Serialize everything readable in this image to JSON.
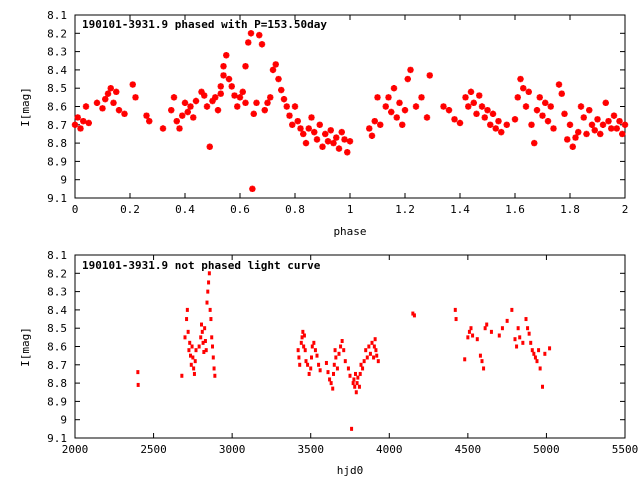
{
  "colors": {
    "points": "#ff0000",
    "axes": "#000000"
  },
  "chart_data": [
    {
      "type": "scatter",
      "title": "190101-3931.9 phased with P=153.50day",
      "xlabel": "phase",
      "ylabel": "I[mag]",
      "xlim": [
        0,
        2
      ],
      "ylim": [
        9.1,
        8.1
      ],
      "y_inverted": true,
      "grid": false,
      "legend": "none",
      "marker": "star",
      "xticks": [
        "0",
        "0.2",
        "0.4",
        "0.6",
        "0.8",
        "1",
        "1.2",
        "1.4",
        "1.6",
        "1.8",
        "2"
      ],
      "yticks": [
        "8.1",
        "8.2",
        "8.3",
        "8.4",
        "8.5",
        "8.6",
        "8.7",
        "8.8",
        "8.9",
        "9",
        "9.1"
      ],
      "points": [
        [
          0.0,
          8.7
        ],
        [
          0.01,
          8.66
        ],
        [
          0.02,
          8.72
        ],
        [
          0.03,
          8.68
        ],
        [
          0.04,
          8.6
        ],
        [
          0.05,
          8.69
        ],
        [
          0.08,
          8.58
        ],
        [
          0.1,
          8.61
        ],
        [
          0.11,
          8.56
        ],
        [
          0.12,
          8.53
        ],
        [
          0.13,
          8.5
        ],
        [
          0.14,
          8.58
        ],
        [
          0.15,
          8.52
        ],
        [
          0.16,
          8.62
        ],
        [
          0.18,
          8.64
        ],
        [
          0.21,
          8.48
        ],
        [
          0.22,
          8.55
        ],
        [
          0.26,
          8.65
        ],
        [
          0.27,
          8.68
        ],
        [
          0.32,
          8.72
        ],
        [
          0.35,
          8.62
        ],
        [
          0.36,
          8.55
        ],
        [
          0.37,
          8.68
        ],
        [
          0.38,
          8.72
        ],
        [
          0.39,
          8.65
        ],
        [
          0.4,
          8.58
        ],
        [
          0.41,
          8.63
        ],
        [
          0.42,
          8.6
        ],
        [
          0.43,
          8.66
        ],
        [
          0.44,
          8.57
        ],
        [
          0.46,
          8.52
        ],
        [
          0.47,
          8.54
        ],
        [
          0.48,
          8.6
        ],
        [
          0.49,
          8.82
        ],
        [
          0.5,
          8.57
        ],
        [
          0.51,
          8.55
        ],
        [
          0.52,
          8.62
        ],
        [
          0.53,
          8.53
        ],
        [
          0.53,
          8.49
        ],
        [
          0.54,
          8.43
        ],
        [
          0.54,
          8.38
        ],
        [
          0.55,
          8.32
        ],
        [
          0.56,
          8.45
        ],
        [
          0.57,
          8.49
        ],
        [
          0.58,
          8.54
        ],
        [
          0.59,
          8.6
        ],
        [
          0.6,
          8.55
        ],
        [
          0.61,
          8.52
        ],
        [
          0.62,
          8.58
        ],
        [
          0.62,
          8.38
        ],
        [
          0.63,
          8.25
        ],
        [
          0.64,
          8.2
        ],
        [
          0.645,
          9.05
        ],
        [
          0.65,
          8.64
        ],
        [
          0.66,
          8.58
        ],
        [
          0.67,
          8.21
        ],
        [
          0.68,
          8.26
        ],
        [
          0.69,
          8.62
        ],
        [
          0.7,
          8.58
        ],
        [
          0.71,
          8.55
        ],
        [
          0.72,
          8.4
        ],
        [
          0.73,
          8.37
        ],
        [
          0.74,
          8.45
        ],
        [
          0.75,
          8.51
        ],
        [
          0.76,
          8.56
        ],
        [
          0.77,
          8.6
        ],
        [
          0.78,
          8.65
        ],
        [
          0.79,
          8.7
        ],
        [
          0.8,
          8.6
        ],
        [
          0.81,
          8.68
        ],
        [
          0.82,
          8.72
        ],
        [
          0.83,
          8.75
        ],
        [
          0.84,
          8.8
        ],
        [
          0.85,
          8.72
        ],
        [
          0.86,
          8.66
        ],
        [
          0.87,
          8.74
        ],
        [
          0.88,
          8.78
        ],
        [
          0.89,
          8.7
        ],
        [
          0.9,
          8.82
        ],
        [
          0.91,
          8.75
        ],
        [
          0.92,
          8.79
        ],
        [
          0.93,
          8.73
        ],
        [
          0.94,
          8.8
        ],
        [
          0.95,
          8.77
        ],
        [
          0.96,
          8.83
        ],
        [
          0.97,
          8.74
        ],
        [
          0.98,
          8.78
        ],
        [
          0.99,
          8.85
        ],
        [
          1.0,
          8.79
        ],
        [
          1.07,
          8.72
        ],
        [
          1.08,
          8.76
        ],
        [
          1.09,
          8.68
        ],
        [
          1.1,
          8.55
        ],
        [
          1.11,
          8.7
        ],
        [
          1.13,
          8.6
        ],
        [
          1.14,
          8.55
        ],
        [
          1.15,
          8.63
        ],
        [
          1.16,
          8.5
        ],
        [
          1.17,
          8.66
        ],
        [
          1.18,
          8.58
        ],
        [
          1.19,
          8.7
        ],
        [
          1.2,
          8.62
        ],
        [
          1.21,
          8.45
        ],
        [
          1.22,
          8.4
        ],
        [
          1.24,
          8.6
        ],
        [
          1.26,
          8.55
        ],
        [
          1.28,
          8.66
        ],
        [
          1.29,
          8.43
        ],
        [
          1.34,
          8.6
        ],
        [
          1.36,
          8.62
        ],
        [
          1.38,
          8.67
        ],
        [
          1.4,
          8.69
        ],
        [
          1.42,
          8.55
        ],
        [
          1.43,
          8.6
        ],
        [
          1.44,
          8.52
        ],
        [
          1.45,
          8.58
        ],
        [
          1.46,
          8.64
        ],
        [
          1.47,
          8.54
        ],
        [
          1.48,
          8.6
        ],
        [
          1.49,
          8.66
        ],
        [
          1.5,
          8.62
        ],
        [
          1.51,
          8.7
        ],
        [
          1.52,
          8.64
        ],
        [
          1.53,
          8.72
        ],
        [
          1.54,
          8.68
        ],
        [
          1.55,
          8.74
        ],
        [
          1.57,
          8.7
        ],
        [
          1.6,
          8.67
        ],
        [
          1.61,
          8.55
        ],
        [
          1.62,
          8.45
        ],
        [
          1.63,
          8.5
        ],
        [
          1.64,
          8.6
        ],
        [
          1.65,
          8.52
        ],
        [
          1.66,
          8.7
        ],
        [
          1.67,
          8.8
        ],
        [
          1.68,
          8.62
        ],
        [
          1.69,
          8.55
        ],
        [
          1.7,
          8.65
        ],
        [
          1.71,
          8.58
        ],
        [
          1.72,
          8.68
        ],
        [
          1.73,
          8.6
        ],
        [
          1.74,
          8.72
        ],
        [
          1.76,
          8.48
        ],
        [
          1.77,
          8.53
        ],
        [
          1.78,
          8.64
        ],
        [
          1.79,
          8.78
        ],
        [
          1.8,
          8.7
        ],
        [
          1.81,
          8.82
        ],
        [
          1.82,
          8.77
        ],
        [
          1.83,
          8.74
        ],
        [
          1.84,
          8.6
        ],
        [
          1.85,
          8.66
        ],
        [
          1.86,
          8.75
        ],
        [
          1.87,
          8.62
        ],
        [
          1.88,
          8.7
        ],
        [
          1.89,
          8.73
        ],
        [
          1.9,
          8.67
        ],
        [
          1.91,
          8.75
        ],
        [
          1.92,
          8.7
        ],
        [
          1.93,
          8.58
        ],
        [
          1.94,
          8.68
        ],
        [
          1.95,
          8.72
        ],
        [
          1.96,
          8.65
        ],
        [
          1.97,
          8.72
        ],
        [
          1.98,
          8.68
        ],
        [
          1.99,
          8.75
        ],
        [
          2.0,
          8.7
        ]
      ]
    },
    {
      "type": "scatter",
      "title": "190101-3931.9 not phased light curve",
      "xlabel": "hjd0",
      "ylabel": "I[mag]",
      "xlim": [
        2000,
        5500
      ],
      "ylim": [
        9.1,
        8.1
      ],
      "y_inverted": true,
      "grid": false,
      "legend": "none",
      "marker": "dot",
      "xticks": [
        "2000",
        "2500",
        "3000",
        "3500",
        "4000",
        "4500",
        "5000",
        "5500"
      ],
      "yticks": [
        "8.1",
        "8.2",
        "8.3",
        "8.4",
        "8.5",
        "8.6",
        "8.7",
        "8.8",
        "8.9",
        "9",
        "9.1"
      ],
      "points": [
        [
          2400,
          8.74
        ],
        [
          2402,
          8.81
        ],
        [
          2680,
          8.76
        ],
        [
          2700,
          8.55
        ],
        [
          2710,
          8.45
        ],
        [
          2715,
          8.4
        ],
        [
          2720,
          8.52
        ],
        [
          2725,
          8.62
        ],
        [
          2730,
          8.58
        ],
        [
          2735,
          8.65
        ],
        [
          2740,
          8.7
        ],
        [
          2745,
          8.6
        ],
        [
          2750,
          8.66
        ],
        [
          2755,
          8.72
        ],
        [
          2760,
          8.75
        ],
        [
          2765,
          8.68
        ],
        [
          2770,
          8.62
        ],
        [
          2790,
          8.6
        ],
        [
          2800,
          8.55
        ],
        [
          2805,
          8.48
        ],
        [
          2810,
          8.52
        ],
        [
          2815,
          8.58
        ],
        [
          2820,
          8.63
        ],
        [
          2825,
          8.5
        ],
        [
          2830,
          8.57
        ],
        [
          2835,
          8.62
        ],
        [
          2840,
          8.36
        ],
        [
          2845,
          8.3
        ],
        [
          2850,
          8.25
        ],
        [
          2855,
          8.2
        ],
        [
          2860,
          8.4
        ],
        [
          2865,
          8.45
        ],
        [
          2870,
          8.55
        ],
        [
          2875,
          8.6
        ],
        [
          2880,
          8.66
        ],
        [
          2885,
          8.72
        ],
        [
          2890,
          8.76
        ],
        [
          3420,
          8.62
        ],
        [
          3425,
          8.66
        ],
        [
          3430,
          8.7
        ],
        [
          3440,
          8.58
        ],
        [
          3445,
          8.55
        ],
        [
          3450,
          8.52
        ],
        [
          3455,
          8.6
        ],
        [
          3460,
          8.54
        ],
        [
          3465,
          8.62
        ],
        [
          3470,
          8.68
        ],
        [
          3480,
          8.7
        ],
        [
          3490,
          8.75
        ],
        [
          3500,
          8.72
        ],
        [
          3505,
          8.66
        ],
        [
          3510,
          8.6
        ],
        [
          3520,
          8.58
        ],
        [
          3530,
          8.62
        ],
        [
          3540,
          8.65
        ],
        [
          3550,
          8.7
        ],
        [
          3560,
          8.73
        ],
        [
          3600,
          8.69
        ],
        [
          3610,
          8.74
        ],
        [
          3620,
          8.78
        ],
        [
          3630,
          8.8
        ],
        [
          3640,
          8.83
        ],
        [
          3645,
          8.75
        ],
        [
          3650,
          8.7
        ],
        [
          3655,
          8.62
        ],
        [
          3660,
          8.66
        ],
        [
          3670,
          8.72
        ],
        [
          3680,
          8.64
        ],
        [
          3690,
          8.6
        ],
        [
          3700,
          8.57
        ],
        [
          3710,
          8.62
        ],
        [
          3720,
          8.68
        ],
        [
          3740,
          8.72
        ],
        [
          3750,
          8.76
        ],
        [
          3760,
          9.05
        ],
        [
          3770,
          8.8
        ],
        [
          3775,
          8.78
        ],
        [
          3780,
          8.82
        ],
        [
          3785,
          8.75
        ],
        [
          3790,
          8.85
        ],
        [
          3795,
          8.8
        ],
        [
          3800,
          8.77
        ],
        [
          3810,
          8.82
        ],
        [
          3815,
          8.75
        ],
        [
          3820,
          8.7
        ],
        [
          3830,
          8.72
        ],
        [
          3840,
          8.68
        ],
        [
          3850,
          8.62
        ],
        [
          3860,
          8.66
        ],
        [
          3870,
          8.6
        ],
        [
          3880,
          8.64
        ],
        [
          3890,
          8.58
        ],
        [
          3900,
          8.66
        ],
        [
          3905,
          8.6
        ],
        [
          3910,
          8.56
        ],
        [
          3915,
          8.62
        ],
        [
          3920,
          8.65
        ],
        [
          3930,
          8.68
        ],
        [
          4150,
          8.42
        ],
        [
          4160,
          8.43
        ],
        [
          4420,
          8.4
        ],
        [
          4425,
          8.45
        ],
        [
          4480,
          8.67
        ],
        [
          4500,
          8.55
        ],
        [
          4510,
          8.52
        ],
        [
          4520,
          8.5
        ],
        [
          4530,
          8.54
        ],
        [
          4560,
          8.56
        ],
        [
          4580,
          8.65
        ],
        [
          4590,
          8.68
        ],
        [
          4600,
          8.72
        ],
        [
          4610,
          8.5
        ],
        [
          4620,
          8.48
        ],
        [
          4650,
          8.52
        ],
        [
          4700,
          8.54
        ],
        [
          4720,
          8.5
        ],
        [
          4750,
          8.46
        ],
        [
          4780,
          8.4
        ],
        [
          4800,
          8.56
        ],
        [
          4810,
          8.6
        ],
        [
          4820,
          8.5
        ],
        [
          4830,
          8.55
        ],
        [
          4850,
          8.58
        ],
        [
          4870,
          8.45
        ],
        [
          4880,
          8.5
        ],
        [
          4890,
          8.53
        ],
        [
          4900,
          8.58
        ],
        [
          4910,
          8.62
        ],
        [
          4920,
          8.64
        ],
        [
          4930,
          8.66
        ],
        [
          4940,
          8.68
        ],
        [
          4950,
          8.62
        ],
        [
          4960,
          8.72
        ],
        [
          4975,
          8.82
        ],
        [
          4990,
          8.64
        ],
        [
          5020,
          8.61
        ]
      ]
    }
  ]
}
